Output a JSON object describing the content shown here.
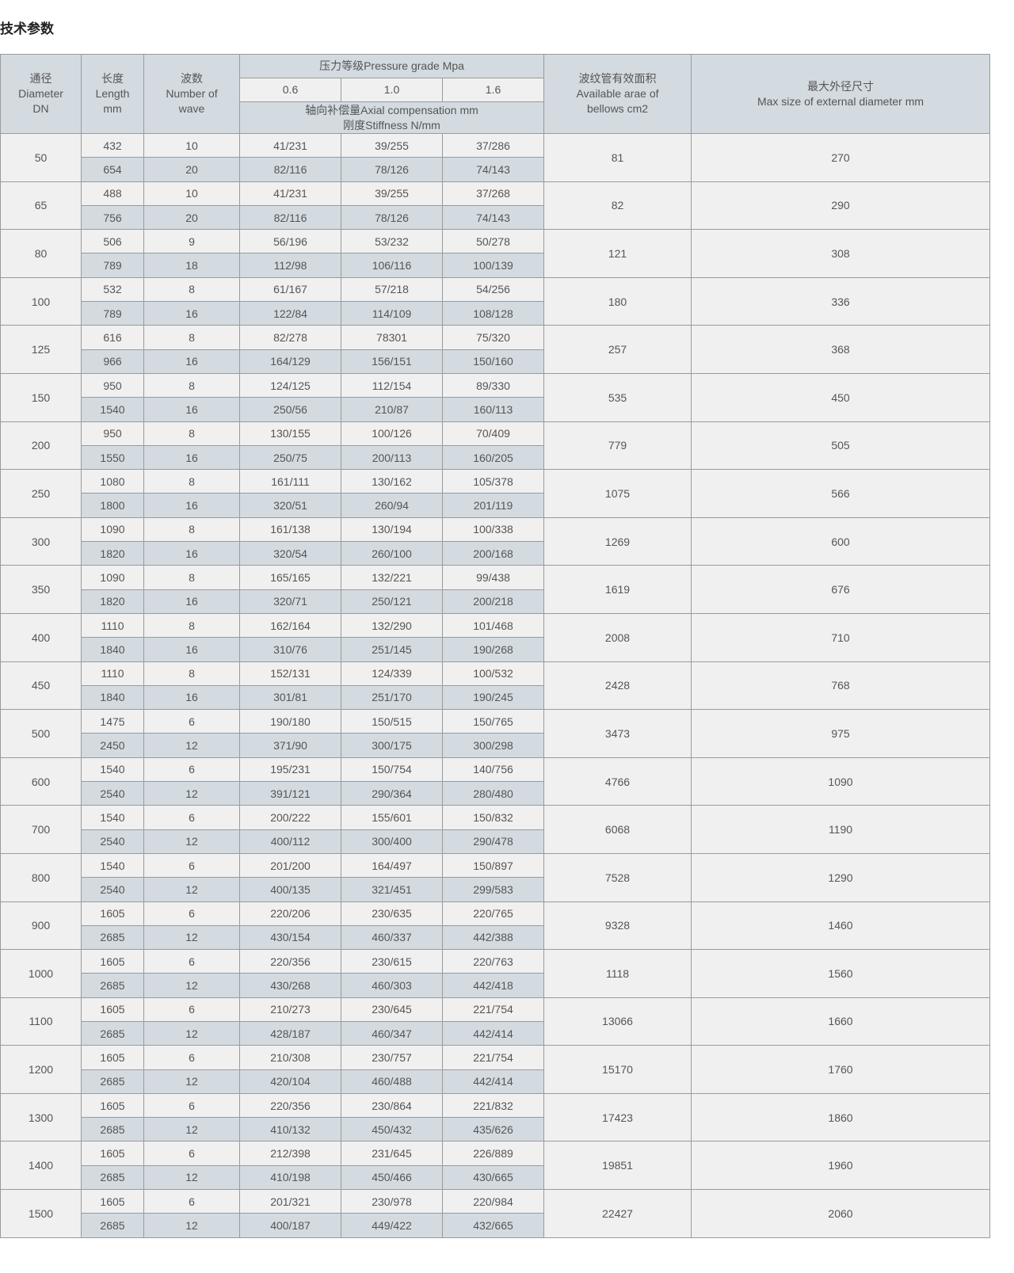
{
  "title": "技术参数",
  "header": {
    "diameter": [
      "通径",
      "Diameter",
      "DN"
    ],
    "length": [
      "长度",
      "Length",
      "mm"
    ],
    "waves": [
      "波数",
      "Number of",
      "wave"
    ],
    "pressure": "压力等级Pressure grade Mpa",
    "grades": [
      "0.6",
      "1.0",
      "1.6"
    ],
    "axial": [
      "轴向补偿量Axial compensation mm",
      "刚度Stiffness N/mm"
    ],
    "area": [
      "波纹管有效面积",
      "Available arae of",
      "bellows cm2"
    ],
    "maxsize": [
      "最大外径尺寸",
      "Max size of external diameter mm"
    ]
  },
  "rows": [
    {
      "dn": "50",
      "area": "81",
      "max": "270",
      "sub": [
        [
          "432",
          "10",
          "41/231",
          "39/255",
          "37/286"
        ],
        [
          "654",
          "20",
          "82/116",
          "78/126",
          "74/143"
        ]
      ]
    },
    {
      "dn": "65",
      "area": "82",
      "max": "290",
      "sub": [
        [
          "488",
          "10",
          "41/231",
          "39/255",
          "37/268"
        ],
        [
          "756",
          "20",
          "82/116",
          "78/126",
          "74/143"
        ]
      ]
    },
    {
      "dn": "80",
      "area": "121",
      "max": "308",
      "sub": [
        [
          "506",
          "9",
          "56/196",
          "53/232",
          "50/278"
        ],
        [
          "789",
          "18",
          "112/98",
          "106/116",
          "100/139"
        ]
      ]
    },
    {
      "dn": "100",
      "area": "180",
      "max": "336",
      "sub": [
        [
          "532",
          "8",
          "61/167",
          "57/218",
          "54/256"
        ],
        [
          "789",
          "16",
          "122/84",
          "114/109",
          "108/128"
        ]
      ]
    },
    {
      "dn": "125",
      "area": "257",
      "max": "368",
      "sub": [
        [
          "616",
          "8",
          "82/278",
          "78301",
          "75/320"
        ],
        [
          "966",
          "16",
          "164/129",
          "156/151",
          "150/160"
        ]
      ]
    },
    {
      "dn": "150",
      "area": "535",
      "max": "450",
      "sub": [
        [
          "950",
          "8",
          "124/125",
          "112/154",
          "89/330"
        ],
        [
          "1540",
          "16",
          "250/56",
          "210/87",
          "160/113"
        ]
      ]
    },
    {
      "dn": "200",
      "area": "779",
      "max": "505",
      "sub": [
        [
          "950",
          "8",
          "130/155",
          "100/126",
          "70/409"
        ],
        [
          "1550",
          "16",
          "250/75",
          "200/113",
          "160/205"
        ]
      ]
    },
    {
      "dn": "250",
      "area": "1075",
      "max": "566",
      "sub": [
        [
          "1080",
          "8",
          "161/111",
          "130/162",
          "105/378"
        ],
        [
          "1800",
          "16",
          "320/51",
          "260/94",
          "201/119"
        ]
      ]
    },
    {
      "dn": "300",
      "area": "1269",
      "max": "600",
      "sub": [
        [
          "1090",
          "8",
          "161/138",
          "130/194",
          "100/338"
        ],
        [
          "1820",
          "16",
          "320/54",
          "260/100",
          "200/168"
        ]
      ]
    },
    {
      "dn": "350",
      "area": "1619",
      "max": "676",
      "sub": [
        [
          "1090",
          "8",
          "165/165",
          "132/221",
          "99/438"
        ],
        [
          "1820",
          "16",
          "320/71",
          "250/121",
          "200/218"
        ]
      ]
    },
    {
      "dn": "400",
      "area": "2008",
      "max": "710",
      "sub": [
        [
          "1110",
          "8",
          "162/164",
          "132/290",
          "101/468"
        ],
        [
          "1840",
          "16",
          "310/76",
          "251/145",
          "190/268"
        ]
      ]
    },
    {
      "dn": "450",
      "area": "2428",
      "max": "768",
      "sub": [
        [
          "1110",
          "8",
          "152/131",
          "124/339",
          "100/532"
        ],
        [
          "1840",
          "16",
          "301/81",
          "251/170",
          "190/245"
        ]
      ]
    },
    {
      "dn": "500",
      "area": "3473",
      "max": "975",
      "sub": [
        [
          "1475",
          "6",
          "190/180",
          "150/515",
          "150/765"
        ],
        [
          "2450",
          "12",
          "371/90",
          "300/175",
          "300/298"
        ]
      ]
    },
    {
      "dn": "600",
      "area": "4766",
      "max": "1090",
      "sub": [
        [
          "1540",
          "6",
          "195/231",
          "150/754",
          "140/756"
        ],
        [
          "2540",
          "12",
          "391/121",
          "290/364",
          "280/480"
        ]
      ]
    },
    {
      "dn": "700",
      "area": "6068",
      "max": "1190",
      "sub": [
        [
          "1540",
          "6",
          "200/222",
          "155/601",
          "150/832"
        ],
        [
          "2540",
          "12",
          "400/112",
          "300/400",
          "290/478"
        ]
      ]
    },
    {
      "dn": "800",
      "area": "7528",
      "max": "1290",
      "sub": [
        [
          "1540",
          "6",
          "201/200",
          "164/497",
          "150/897"
        ],
        [
          "2540",
          "12",
          "400/135",
          "321/451",
          "299/583"
        ]
      ]
    },
    {
      "dn": "900",
      "area": "9328",
      "max": "1460",
      "sub": [
        [
          "1605",
          "6",
          "220/206",
          "230/635",
          "220/765"
        ],
        [
          "2685",
          "12",
          "430/154",
          "460/337",
          "442/388"
        ]
      ]
    },
    {
      "dn": "1000",
      "area": "1118",
      "max": "1560",
      "sub": [
        [
          "1605",
          "6",
          "220/356",
          "230/615",
          "220/763"
        ],
        [
          "2685",
          "12",
          "430/268",
          "460/303",
          "442/418"
        ]
      ]
    },
    {
      "dn": "1100",
      "area": "13066",
      "max": "1660",
      "sub": [
        [
          "1605",
          "6",
          "210/273",
          "230/645",
          "221/754"
        ],
        [
          "2685",
          "12",
          "428/187",
          "460/347",
          "442/414"
        ]
      ]
    },
    {
      "dn": "1200",
      "area": "15170",
      "max": "1760",
      "sub": [
        [
          "1605",
          "6",
          "210/308",
          "230/757",
          "221/754"
        ],
        [
          "2685",
          "12",
          "420/104",
          "460/488",
          "442/414"
        ]
      ]
    },
    {
      "dn": "1300",
      "area": "17423",
      "max": "1860",
      "sub": [
        [
          "1605",
          "6",
          "220/356",
          "230/864",
          "221/832"
        ],
        [
          "2685",
          "12",
          "410/132",
          "450/432",
          "435/626"
        ]
      ]
    },
    {
      "dn": "1400",
      "area": "19851",
      "max": "1960",
      "sub": [
        [
          "1605",
          "6",
          "212/398",
          "231/645",
          "226/889"
        ],
        [
          "2685",
          "12",
          "410/198",
          "450/466",
          "430/665"
        ]
      ]
    },
    {
      "dn": "1500",
      "area": "22427",
      "max": "2060",
      "sub": [
        [
          "1605",
          "6",
          "201/321",
          "230/978",
          "220/984"
        ],
        [
          "2685",
          "12",
          "400/187",
          "449/422",
          "432/665"
        ]
      ]
    }
  ]
}
